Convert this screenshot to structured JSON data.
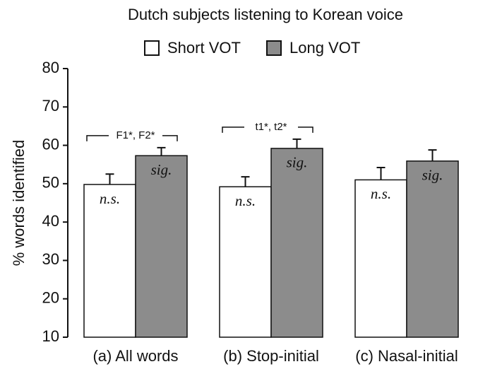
{
  "chart_data": {
    "type": "bar",
    "title": "Dutch subjects listening to Korean voice",
    "ylabel": "% words identified",
    "categories": [
      "(a) All words",
      "(b) Stop-initial",
      "(c) Nasal-initial"
    ],
    "series": [
      {
        "name": "Short VOT",
        "color": "#ffffff",
        "values": [
          49.8,
          49.2,
          51.0
        ],
        "errors": [
          2.7,
          2.6,
          3.2
        ],
        "annotations": [
          "n.s.",
          "n.s.",
          "n.s."
        ]
      },
      {
        "name": "Long VOT",
        "color": "#8c8c8c",
        "values": [
          57.3,
          59.2,
          55.9
        ],
        "errors": [
          2.1,
          2.4,
          2.9
        ],
        "annotations": [
          "sig.",
          "sig.",
          "sig."
        ]
      }
    ],
    "bracket_labels": [
      "F1*, F2*",
      "t1*, t2*",
      null
    ],
    "ylim": [
      10,
      80
    ],
    "yticks": [
      10,
      20,
      30,
      40,
      50,
      60,
      70,
      80
    ],
    "legend": "top"
  }
}
